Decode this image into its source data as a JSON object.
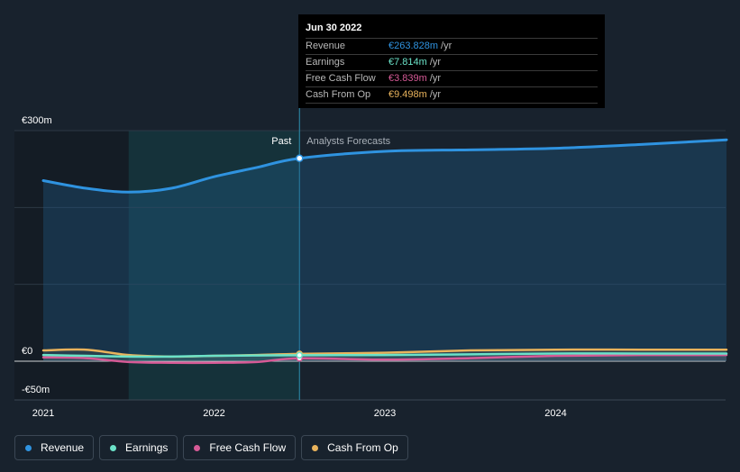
{
  "chart_data": {
    "type": "line",
    "x_ticks": [
      {
        "label": "2021",
        "x": 2021.0
      },
      {
        "label": "2022",
        "x": 2022.0
      },
      {
        "label": "2023",
        "x": 2023.0
      },
      {
        "label": "2024",
        "x": 2024.0
      }
    ],
    "y_ticks": [
      {
        "label": "€300m",
        "value": 300
      },
      {
        "label": "€0",
        "value": 0
      },
      {
        "label": "-€50m",
        "value": -50
      }
    ],
    "xlim": [
      2020.95,
      2025.0
    ],
    "ylim": [
      -50,
      300
    ],
    "past_label": "Past",
    "forecast_label": "Analysts Forecasts",
    "past_end_x": 2022.5,
    "highlight_start_x": 2021.5,
    "series": [
      {
        "name": "Revenue",
        "color": "#2f93e0",
        "points": [
          [
            2021.0,
            235
          ],
          [
            2021.25,
            225
          ],
          [
            2021.5,
            220
          ],
          [
            2021.75,
            225
          ],
          [
            2022.0,
            240
          ],
          [
            2022.25,
            252
          ],
          [
            2022.5,
            264
          ],
          [
            2023.0,
            273
          ],
          [
            2023.5,
            275
          ],
          [
            2024.0,
            277
          ],
          [
            2024.5,
            282
          ],
          [
            2025.0,
            288
          ]
        ]
      },
      {
        "name": "Earnings",
        "color": "#6be2c8",
        "points": [
          [
            2021.0,
            8
          ],
          [
            2021.25,
            7
          ],
          [
            2021.5,
            6
          ],
          [
            2021.75,
            6
          ],
          [
            2022.0,
            7
          ],
          [
            2022.25,
            7.5
          ],
          [
            2022.5,
            7.8
          ],
          [
            2023.0,
            8
          ],
          [
            2023.5,
            9
          ],
          [
            2024.0,
            10
          ],
          [
            2024.5,
            10
          ],
          [
            2025.0,
            10
          ]
        ]
      },
      {
        "name": "Free Cash Flow",
        "color": "#d65a96",
        "points": [
          [
            2021.0,
            5
          ],
          [
            2021.25,
            4
          ],
          [
            2021.5,
            -1
          ],
          [
            2021.75,
            -2
          ],
          [
            2022.0,
            -2
          ],
          [
            2022.25,
            -1
          ],
          [
            2022.5,
            3.8
          ],
          [
            2023.0,
            2
          ],
          [
            2023.5,
            4
          ],
          [
            2024.0,
            7
          ],
          [
            2024.5,
            8
          ],
          [
            2025.0,
            8
          ]
        ]
      },
      {
        "name": "Cash From Op",
        "color": "#e9b35c",
        "points": [
          [
            2021.0,
            14
          ],
          [
            2021.25,
            15
          ],
          [
            2021.5,
            8
          ],
          [
            2021.75,
            6
          ],
          [
            2022.0,
            7
          ],
          [
            2022.25,
            8
          ],
          [
            2022.5,
            9.5
          ],
          [
            2023.0,
            11
          ],
          [
            2023.5,
            14
          ],
          [
            2024.0,
            15
          ],
          [
            2024.5,
            15
          ],
          [
            2025.0,
            15
          ]
        ]
      }
    ]
  },
  "tooltip": {
    "date": "Jun 30 2022",
    "rows": [
      {
        "label": "Revenue",
        "value": "€263.828m",
        "unit": "/yr",
        "color": "#2f93e0"
      },
      {
        "label": "Earnings",
        "value": "€7.814m",
        "unit": "/yr",
        "color": "#6be2c8"
      },
      {
        "label": "Free Cash Flow",
        "value": "€3.839m",
        "unit": "/yr",
        "color": "#d65a96"
      },
      {
        "label": "Cash From Op",
        "value": "€9.498m",
        "unit": "/yr",
        "color": "#e9b35c"
      }
    ]
  },
  "legend": [
    {
      "label": "Revenue",
      "color": "#2f93e0"
    },
    {
      "label": "Earnings",
      "color": "#6be2c8"
    },
    {
      "label": "Free Cash Flow",
      "color": "#d65a96"
    },
    {
      "label": "Cash From Op",
      "color": "#e9b35c"
    }
  ]
}
